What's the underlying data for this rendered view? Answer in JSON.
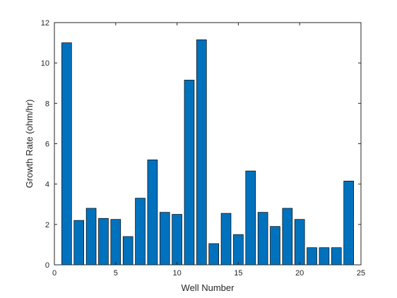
{
  "chart_data": {
    "type": "bar",
    "xlabel": "Well Number",
    "ylabel": "Growth Rate (ohm/hr)",
    "xlim": [
      0,
      25
    ],
    "ylim": [
      0,
      12
    ],
    "xticks": [
      0,
      5,
      10,
      15,
      20,
      25
    ],
    "xtick_labels": [
      "0",
      "5",
      "10",
      "15",
      "20",
      "25"
    ],
    "yticks": [
      0,
      2,
      4,
      6,
      8,
      10,
      12
    ],
    "ytick_labels": [
      "0",
      "2",
      "4",
      "6",
      "8",
      "10",
      "12"
    ],
    "categories": [
      1,
      2,
      3,
      4,
      5,
      6,
      7,
      8,
      9,
      10,
      11,
      12,
      13,
      14,
      15,
      16,
      17,
      18,
      19,
      20,
      21,
      22,
      23,
      24
    ],
    "values": [
      11.0,
      2.2,
      2.8,
      2.3,
      2.25,
      1.4,
      3.3,
      5.2,
      2.6,
      2.5,
      9.15,
      11.15,
      1.05,
      2.55,
      1.5,
      4.65,
      2.6,
      1.9,
      2.8,
      2.25,
      0.85,
      0.85,
      0.85,
      4.15
    ],
    "bar_color": "#0072BD",
    "edge_color": "#000000",
    "grid": false,
    "box": true
  }
}
